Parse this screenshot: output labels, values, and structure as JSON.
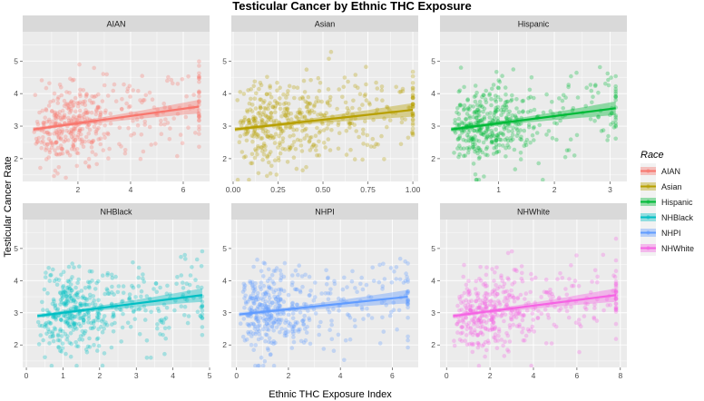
{
  "chart_data": {
    "type": "scatter",
    "title": "Testicular Cancer by Ethnic THC Exposure",
    "xlabel": "Ethnic THC Exposure Index",
    "ylabel": "Testicular Cancer Rate",
    "ylim": [
      1.3,
      5.9
    ],
    "y_ticks": [
      2,
      3,
      4,
      5
    ],
    "legend": {
      "title": "Race",
      "position": "right",
      "entries": [
        "AIAN",
        "Asian",
        "Hispanic",
        "NHBlack",
        "NHPI",
        "NHWhite"
      ]
    },
    "panels": [
      {
        "name": "AIAN",
        "color": "#F8766D",
        "xlim": [
          -0.1,
          7.0
        ],
        "x_ticks": [
          2,
          4,
          6
        ],
        "x_tick_labels": [
          "2",
          "4",
          "6"
        ],
        "x_min": 0.3,
        "x_max": 6.6,
        "x_center": 0.5,
        "x_scale": 1.3,
        "fit_start": 2.9,
        "fit_end": 3.6,
        "n_points": 440,
        "seed": 11
      },
      {
        "name": "Asian",
        "color": "#B79F00",
        "xlim": [
          -0.01,
          1.03
        ],
        "x_ticks": [
          0,
          0.25,
          0.5,
          0.75,
          1
        ],
        "x_tick_labels": [
          "0.00",
          "0.25",
          "0.50",
          "0.75",
          "1.00"
        ],
        "x_min": 0.01,
        "x_max": 1.0,
        "x_center": 0.08,
        "x_scale": 0.22,
        "fit_start": 2.9,
        "fit_end": 3.5,
        "n_points": 480,
        "seed": 23
      },
      {
        "name": "Hispanic",
        "color": "#00BA38",
        "xlim": [
          -0.05,
          3.3
        ],
        "x_ticks": [
          1,
          2,
          3
        ],
        "x_tick_labels": [
          "1",
          "2",
          "3"
        ],
        "x_min": 0.15,
        "x_max": 3.1,
        "x_center": 0.25,
        "x_scale": 0.6,
        "fit_start": 2.9,
        "fit_end": 3.55,
        "n_points": 460,
        "seed": 37
      },
      {
        "name": "NHBlack",
        "color": "#00BFC4",
        "xlim": [
          -0.1,
          5.0
        ],
        "x_ticks": [
          0,
          1,
          2,
          3,
          4,
          5
        ],
        "x_tick_labels": [
          "0",
          "1",
          "2",
          "3",
          "4",
          "5"
        ],
        "x_min": 0.3,
        "x_max": 4.8,
        "x_center": 0.45,
        "x_scale": 0.9,
        "fit_start": 2.9,
        "fit_end": 3.55,
        "n_points": 470,
        "seed": 41
      },
      {
        "name": "NHPI",
        "color": "#619CFF",
        "xlim": [
          -0.2,
          7.0
        ],
        "x_ticks": [
          0,
          2,
          4,
          6
        ],
        "x_tick_labels": [
          "0",
          "2",
          "4",
          "6"
        ],
        "x_min": 0.1,
        "x_max": 6.6,
        "x_center": 0.3,
        "x_scale": 1.2,
        "fit_start": 2.95,
        "fit_end": 3.5,
        "n_points": 460,
        "seed": 53
      },
      {
        "name": "NHWhite",
        "color": "#F564E3",
        "xlim": [
          -0.3,
          8.3
        ],
        "x_ticks": [
          0,
          2,
          4,
          6,
          8
        ],
        "x_tick_labels": [
          "0",
          "2",
          "4",
          "6",
          "8"
        ],
        "x_min": 0.3,
        "x_max": 7.8,
        "x_center": 0.5,
        "x_scale": 1.5,
        "fit_start": 2.9,
        "fit_end": 3.55,
        "n_points": 460,
        "seed": 67
      }
    ]
  }
}
